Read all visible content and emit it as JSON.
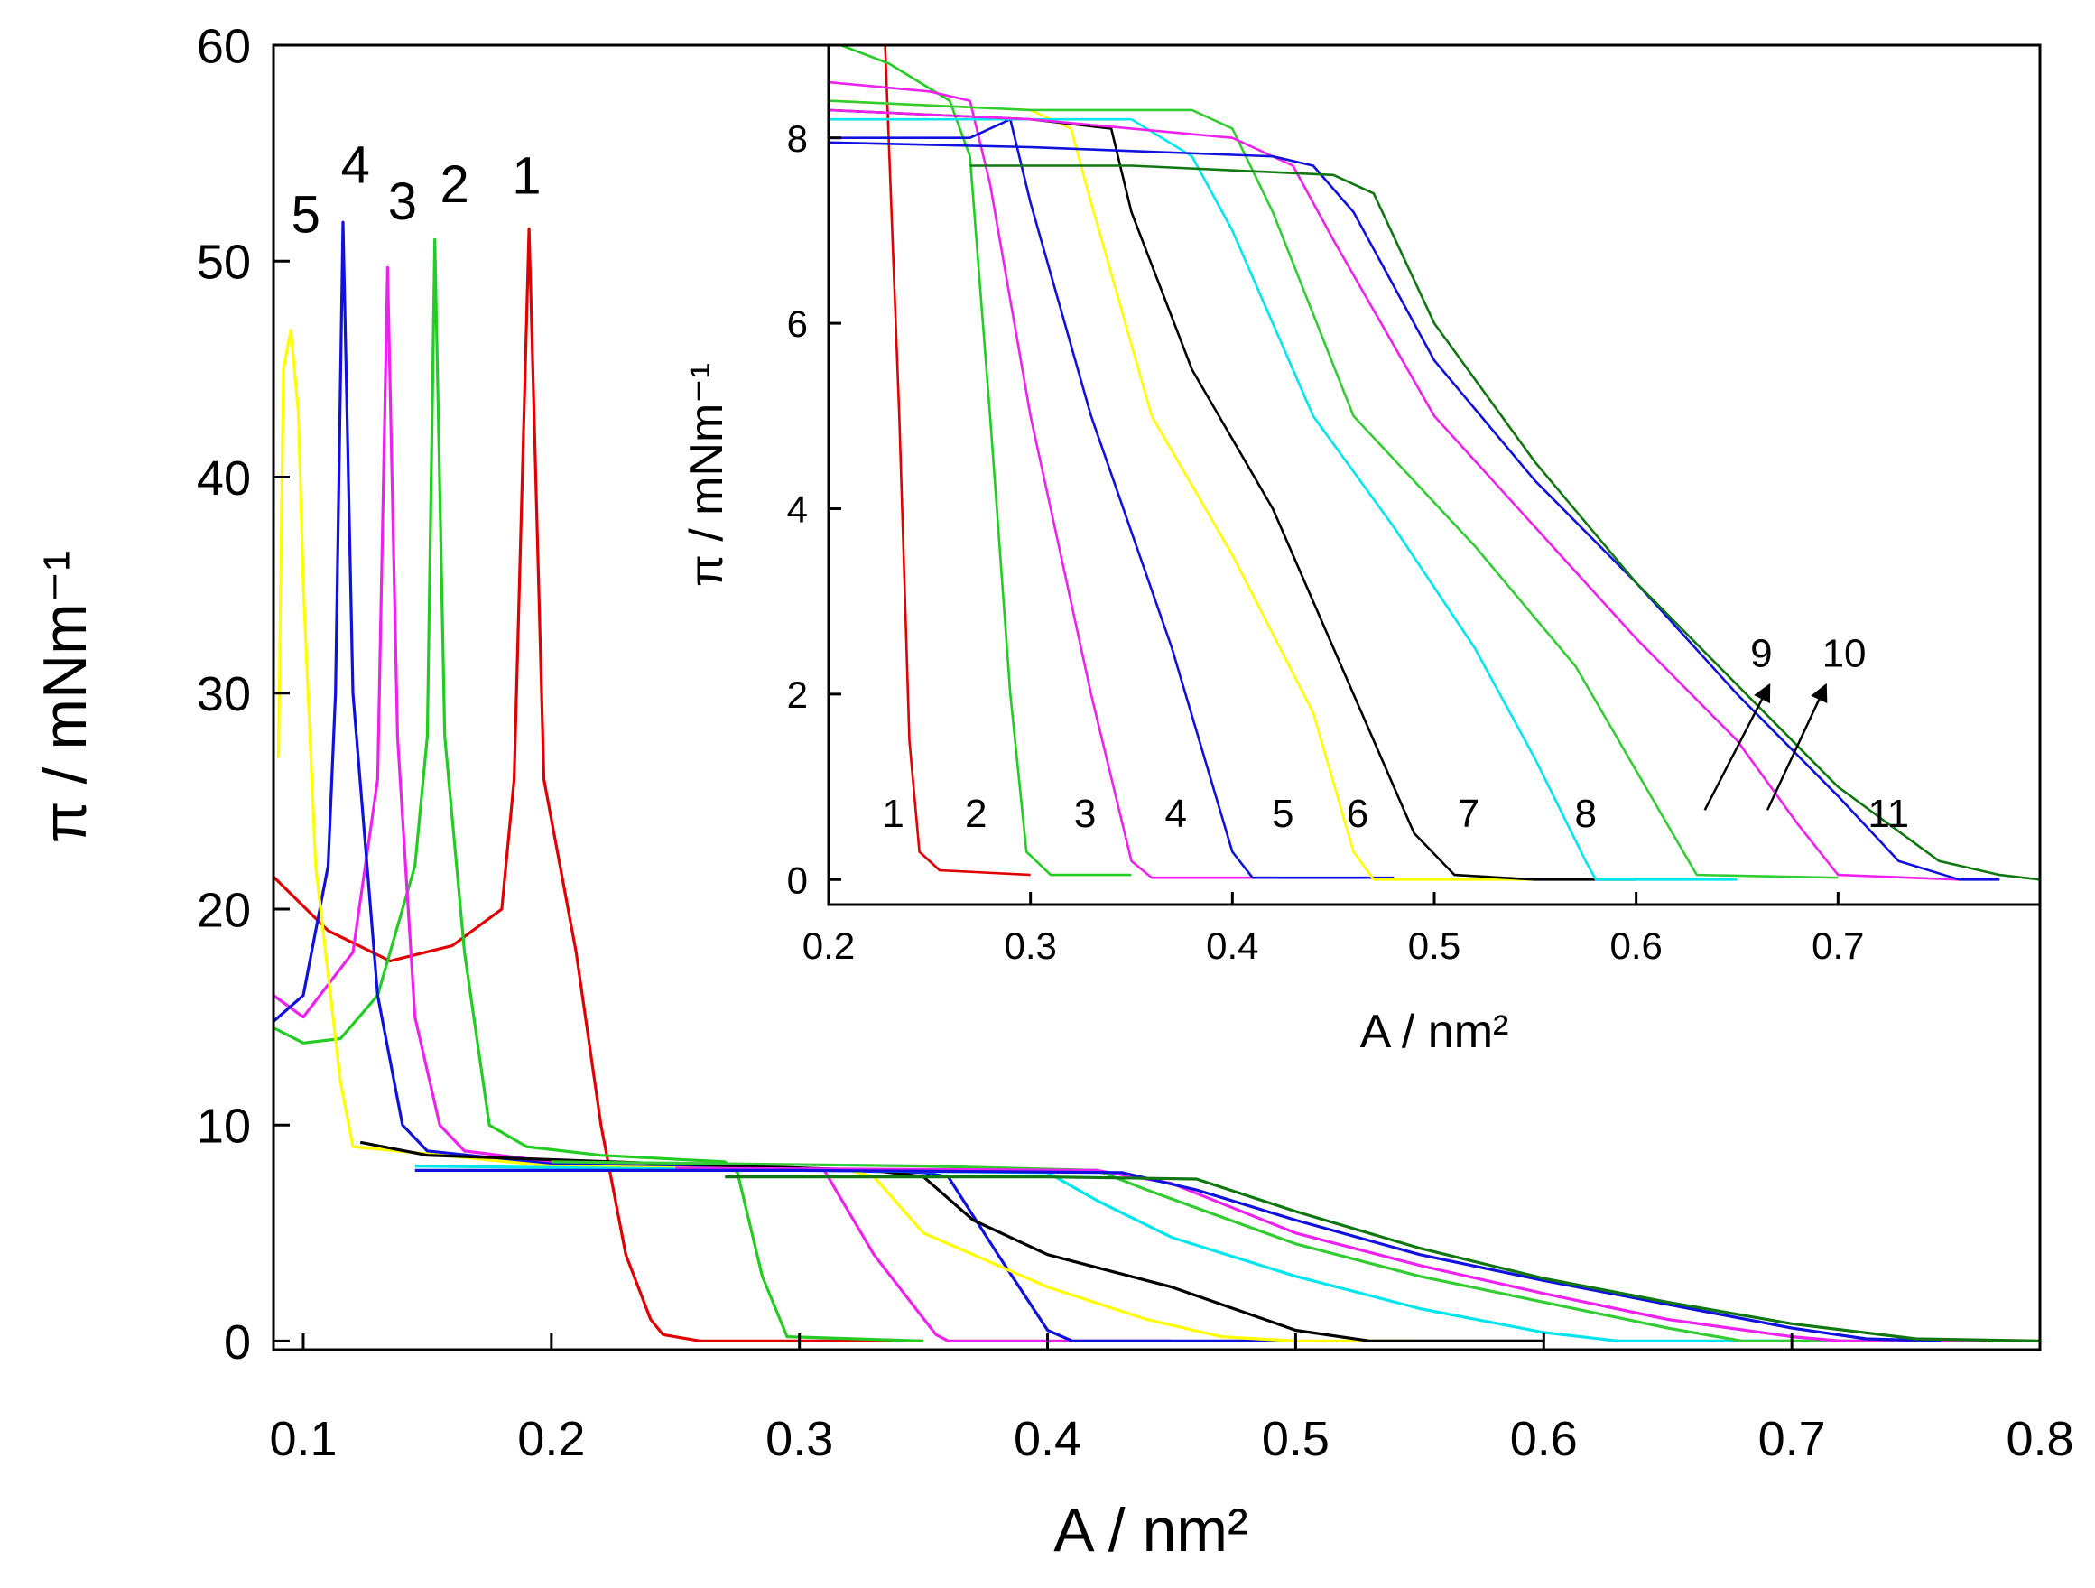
{
  "chart_data": [
    {
      "type": "line",
      "xlabel": "A / nm²",
      "ylabel": "π / mNm⁻¹",
      "xlim": [
        0.088,
        0.8
      ],
      "ylim": [
        -0.4,
        60
      ],
      "xticks": [
        0.1,
        0.2,
        0.3,
        0.4,
        0.5,
        0.6,
        0.7,
        0.8
      ],
      "yticks": [
        0,
        10,
        20,
        30,
        40,
        50,
        60
      ],
      "series": [
        {
          "name": "1",
          "color": "#e00000",
          "x": [
            0.088,
            0.11,
            0.135,
            0.16,
            0.18,
            0.185,
            0.191,
            0.197,
            0.21,
            0.22,
            0.23,
            0.24,
            0.245,
            0.26,
            0.35
          ],
          "values": [
            21.5,
            19,
            17.6,
            18.3,
            20,
            26,
            51.5,
            26,
            18,
            10,
            4,
            1,
            0.3,
            0,
            0
          ]
        },
        {
          "name": "2",
          "color": "#22cc22",
          "x": [
            0.088,
            0.1,
            0.115,
            0.13,
            0.145,
            0.15,
            0.153,
            0.157,
            0.165,
            0.175,
            0.19,
            0.22,
            0.27,
            0.275,
            0.285,
            0.295,
            0.35
          ],
          "values": [
            14.5,
            13.8,
            14,
            16,
            22,
            28,
            51,
            28,
            18,
            10,
            9,
            8.6,
            8.3,
            7.8,
            3,
            0.2,
            0
          ]
        },
        {
          "name": "3",
          "color": "#ee22ee",
          "x": [
            0.088,
            0.1,
            0.12,
            0.13,
            0.134,
            0.138,
            0.145,
            0.155,
            0.165,
            0.2,
            0.3,
            0.31,
            0.33,
            0.355,
            0.36,
            0.45
          ],
          "values": [
            16,
            15,
            18,
            26,
            49.7,
            28,
            15,
            10,
            8.8,
            8.3,
            8,
            7.9,
            4,
            0.3,
            0,
            0
          ]
        },
        {
          "name": "4",
          "color": "#1111dd",
          "x": [
            0.088,
            0.1,
            0.11,
            0.113,
            0.116,
            0.12,
            0.13,
            0.14,
            0.15,
            0.2,
            0.35,
            0.36,
            0.38,
            0.4,
            0.41,
            0.5
          ],
          "values": [
            14.8,
            16,
            22,
            30,
            51.8,
            30,
            16,
            10,
            8.8,
            8.2,
            7.8,
            7.6,
            4,
            0.5,
            0,
            0
          ]
        },
        {
          "name": "5",
          "color": "#ffff00",
          "x": [
            0.09,
            0.092,
            0.095,
            0.098,
            0.1,
            0.105,
            0.115,
            0.12,
            0.2,
            0.32,
            0.33,
            0.35,
            0.4,
            0.44,
            0.47,
            0.5,
            0.55
          ],
          "values": [
            27,
            45,
            46.8,
            43,
            35,
            22,
            12,
            9,
            8.1,
            7.9,
            7.6,
            5,
            2.5,
            1,
            0.2,
            0,
            0
          ]
        },
        {
          "color": "#000000",
          "x": [
            0.123,
            0.15,
            0.25,
            0.33,
            0.35,
            0.37,
            0.4,
            0.45,
            0.5,
            0.53,
            0.6
          ],
          "values": [
            9.2,
            8.6,
            8.2,
            7.9,
            7.6,
            5.6,
            4,
            2.5,
            0.5,
            0,
            0
          ]
        },
        {
          "color": "#00e5ee",
          "x": [
            0.145,
            0.3,
            0.4,
            0.42,
            0.45,
            0.5,
            0.55,
            0.6,
            0.63,
            0.7
          ],
          "values": [
            8.1,
            7.9,
            7.8,
            6.5,
            4.8,
            3,
            1.5,
            0.4,
            0,
            0
          ]
        },
        {
          "color": "#33cc33",
          "x": [
            0.2,
            0.35,
            0.42,
            0.44,
            0.5,
            0.55,
            0.6,
            0.65,
            0.68,
            0.75
          ],
          "values": [
            8.3,
            8.1,
            7.9,
            7,
            4.5,
            3,
            1.8,
            0.6,
            0,
            0
          ]
        },
        {
          "color": "#ee22ee",
          "x": [
            0.25,
            0.42,
            0.45,
            0.5,
            0.55,
            0.6,
            0.65,
            0.7,
            0.72,
            0.78
          ],
          "values": [
            8,
            7.9,
            7.3,
            5,
            3.5,
            2.2,
            1,
            0.2,
            0,
            0
          ]
        },
        {
          "color": "#1111dd",
          "x": [
            0.145,
            0.3,
            0.43,
            0.46,
            0.5,
            0.55,
            0.6,
            0.65,
            0.7,
            0.73,
            0.76
          ],
          "values": [
            7.9,
            7.9,
            7.8,
            7,
            5.6,
            4,
            2.8,
            1.7,
            0.6,
            0.1,
            0
          ]
        },
        {
          "color": "#117711",
          "x": [
            0.27,
            0.4,
            0.46,
            0.5,
            0.55,
            0.6,
            0.65,
            0.7,
            0.75,
            0.8
          ],
          "values": [
            7.6,
            7.6,
            7.5,
            6,
            4.3,
            2.9,
            1.8,
            0.8,
            0.1,
            0
          ]
        }
      ]
    },
    {
      "type": "line",
      "xlabel": "A / nm²",
      "ylabel": "π / mNm⁻¹",
      "xlim": [
        0.2,
        0.8
      ],
      "ylim": [
        -0.27,
        9
      ],
      "xticks": [
        0.2,
        0.3,
        0.4,
        0.5,
        0.6,
        0.7
      ],
      "yticks": [
        0,
        2,
        4,
        6,
        8
      ],
      "series": [
        {
          "name": "1",
          "color": "#e00000",
          "x": [
            0.228,
            0.235,
            0.24,
            0.245,
            0.255,
            0.3
          ],
          "values": [
            9,
            5,
            1.5,
            0.3,
            0.1,
            0.05
          ]
        },
        {
          "name": "2",
          "color": "#22cc22",
          "x": [
            0.2,
            0.23,
            0.26,
            0.27,
            0.28,
            0.29,
            0.298,
            0.31,
            0.35
          ],
          "values": [
            9.05,
            8.8,
            8.4,
            7.8,
            5,
            2,
            0.3,
            0.05,
            0.05
          ]
        },
        {
          "name": "3",
          "color": "#ee22ee",
          "x": [
            0.2,
            0.25,
            0.27,
            0.28,
            0.3,
            0.33,
            0.35,
            0.36,
            0.42
          ],
          "values": [
            8.6,
            8.5,
            8.4,
            7.5,
            5,
            2,
            0.2,
            0.02,
            0.02
          ]
        },
        {
          "name": "4",
          "color": "#1111dd",
          "x": [
            0.2,
            0.27,
            0.29,
            0.3,
            0.33,
            0.37,
            0.4,
            0.41,
            0.48
          ],
          "values": [
            8,
            8,
            8.2,
            7.3,
            5,
            2.5,
            0.3,
            0.02,
            0.02
          ]
        },
        {
          "name": "5",
          "color": "#ffff00",
          "x": [
            0.2,
            0.3,
            0.32,
            0.33,
            0.36,
            0.4,
            0.44,
            0.46,
            0.47,
            0.55
          ],
          "values": [
            8.4,
            8.3,
            8.1,
            7.3,
            5,
            3.5,
            1.8,
            0.3,
            0,
            0
          ]
        },
        {
          "name": "6",
          "color": "#000000",
          "x": [
            0.2,
            0.3,
            0.34,
            0.35,
            0.38,
            0.42,
            0.46,
            0.49,
            0.51,
            0.55,
            0.6
          ],
          "values": [
            8.3,
            8.2,
            8.1,
            7.2,
            5.5,
            4,
            2,
            0.5,
            0.05,
            0,
            0
          ]
        },
        {
          "name": "7",
          "color": "#00e5ee",
          "x": [
            0.2,
            0.35,
            0.38,
            0.4,
            0.44,
            0.48,
            0.52,
            0.55,
            0.575,
            0.58,
            0.65
          ],
          "values": [
            8.2,
            8.2,
            7.8,
            7,
            5,
            3.8,
            2.5,
            1.3,
            0.2,
            0,
            0
          ]
        },
        {
          "name": "8",
          "color": "#33cc33",
          "x": [
            0.2,
            0.3,
            0.38,
            0.4,
            0.42,
            0.46,
            0.52,
            0.57,
            0.61,
            0.63,
            0.7
          ],
          "values": [
            8.4,
            8.3,
            8.3,
            8.1,
            7.2,
            5,
            3.6,
            2.3,
            0.8,
            0.05,
            0.02
          ]
        },
        {
          "name": "9",
          "color": "#ee22ee",
          "x": [
            0.2,
            0.3,
            0.4,
            0.43,
            0.45,
            0.5,
            0.55,
            0.6,
            0.65,
            0.68,
            0.7,
            0.76
          ],
          "values": [
            8.3,
            8.2,
            8,
            7.7,
            6.9,
            5,
            3.8,
            2.6,
            1.5,
            0.6,
            0.05,
            0
          ]
        },
        {
          "name": "10",
          "color": "#1111dd",
          "x": [
            0.2,
            0.3,
            0.42,
            0.44,
            0.46,
            0.5,
            0.55,
            0.6,
            0.65,
            0.7,
            0.73,
            0.76,
            0.78
          ],
          "values": [
            7.95,
            7.9,
            7.8,
            7.7,
            7.2,
            5.6,
            4.3,
            3.2,
            2,
            0.9,
            0.2,
            0,
            0
          ]
        },
        {
          "name": "11",
          "color": "#117711",
          "x": [
            0.27,
            0.35,
            0.45,
            0.47,
            0.5,
            0.55,
            0.6,
            0.65,
            0.7,
            0.75,
            0.78,
            0.8
          ],
          "values": [
            7.7,
            7.7,
            7.6,
            7.4,
            6,
            4.5,
            3.2,
            2.1,
            1,
            0.2,
            0.05,
            0
          ]
        }
      ]
    }
  ]
}
